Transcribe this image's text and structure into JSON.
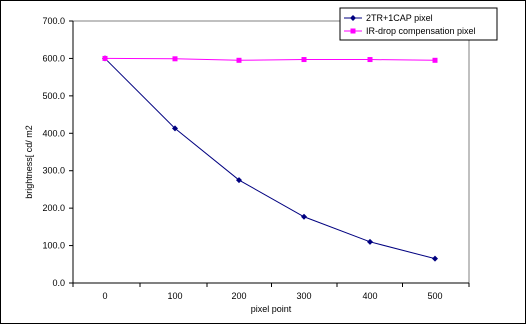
{
  "chart_data": {
    "type": "line",
    "xlabel": "pixel point",
    "ylabel": "brightness[ cd/ m2",
    "x": [
      0,
      100,
      200,
      300,
      400,
      500
    ],
    "x_ticks": [
      "0",
      "100",
      "200",
      "300",
      "400",
      "500"
    ],
    "ylim": [
      0,
      700
    ],
    "y_ticks": [
      "0.0",
      "100.0",
      "200.0",
      "300.0",
      "400.0",
      "500.0",
      "600.0",
      "700.0"
    ],
    "legend_position": "top-right",
    "grid": false,
    "series": [
      {
        "name": "2TR+1CAP pixel",
        "color": "#000080",
        "marker": "diamond",
        "values": [
          600,
          413,
          275,
          177,
          110,
          65
        ]
      },
      {
        "name": "IR-drop compensation pixel",
        "color": "#FF00FF",
        "marker": "square",
        "values": [
          600,
          599,
          595,
          597,
          597,
          595
        ]
      }
    ]
  }
}
